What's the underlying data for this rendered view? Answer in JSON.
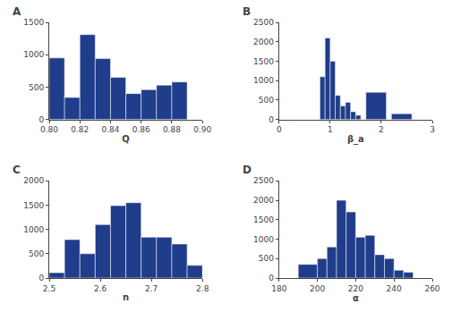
{
  "chart_data": [
    {
      "type": "histogram",
      "title": "A",
      "xlabel": "Q",
      "color": "#1f3d8a",
      "grid": false,
      "xlim": [
        0.8,
        0.9
      ],
      "ylim": [
        0,
        1500
      ],
      "xticks": [
        {
          "value": 0.8,
          "label": "0.80"
        },
        0.82,
        0.84,
        0.86,
        0.88,
        {
          "value": 0.9,
          "label": "0.90"
        }
      ],
      "yticks": [
        0,
        500,
        1000,
        1500
      ],
      "bins": [
        0.8,
        0.81,
        0.82,
        0.83,
        0.84,
        0.85,
        0.86,
        0.87,
        0.88,
        0.89
      ],
      "values": [
        950,
        340,
        1310,
        940,
        650,
        400,
        460,
        530,
        580
      ]
    },
    {
      "type": "histogram",
      "title": "B",
      "xlabel": "β_a",
      "color": "#1f3d8a",
      "grid": false,
      "xlim": [
        0,
        3
      ],
      "ylim": [
        0,
        2500
      ],
      "xticks": [
        0,
        1,
        2,
        3
      ],
      "yticks": [
        0,
        500,
        1000,
        1500,
        2000,
        2500
      ],
      "bins": [
        0.8,
        0.9,
        1.0,
        1.1,
        1.2,
        1.3,
        1.4,
        1.5,
        1.6,
        1.7,
        2.1,
        2.2,
        2.6,
        2.7
      ],
      "values": [
        1100,
        2100,
        1500,
        620,
        350,
        440,
        200,
        110,
        0,
        700,
        0,
        150,
        0
      ]
    },
    {
      "type": "histogram",
      "title": "C",
      "xlabel": "n",
      "color": "#1f3d8a",
      "grid": false,
      "xlim": [
        2.5,
        2.8
      ],
      "ylim": [
        0,
        2000
      ],
      "xticks": [
        2.5,
        2.6,
        2.7,
        2.8
      ],
      "yticks": [
        0,
        500,
        1000,
        1500,
        2000
      ],
      "bins": [
        2.5,
        2.53,
        2.56,
        2.59,
        2.62,
        2.65,
        2.68,
        2.71,
        2.74,
        2.77,
        2.8
      ],
      "values": [
        110,
        790,
        500,
        1100,
        1490,
        1550,
        840,
        840,
        700,
        260
      ]
    },
    {
      "type": "histogram",
      "title": "D",
      "xlabel": "α",
      "color": "#1f3d8a",
      "grid": false,
      "xlim": [
        180,
        260
      ],
      "ylim": [
        0,
        2500
      ],
      "xticks": [
        180,
        200,
        220,
        240,
        260
      ],
      "yticks": [
        0,
        500,
        1000,
        1500,
        2000,
        2500
      ],
      "bins": [
        190,
        200,
        205,
        210,
        215,
        220,
        225,
        230,
        235,
        240,
        245,
        250
      ],
      "values": [
        350,
        500,
        800,
        2000,
        1700,
        1050,
        1100,
        600,
        500,
        200,
        150
      ]
    }
  ]
}
